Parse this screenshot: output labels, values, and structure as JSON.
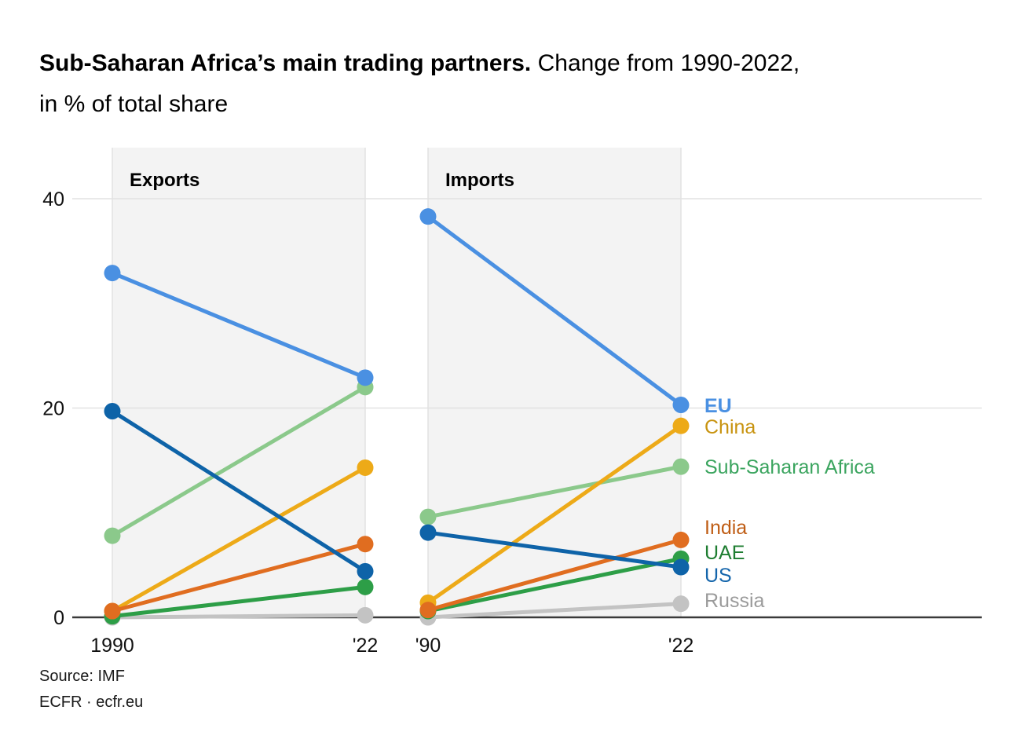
{
  "title": {
    "bold": "Sub-Saharan Africa’s main trading partners.",
    "tail": " Change from 1990-2022,",
    "line2": "in % of total share"
  },
  "footer": {
    "source": "Source: IMF",
    "credit": "ECFR · ecfr.eu"
  },
  "chart_data": {
    "type": "line",
    "subtype": "slope-chart",
    "title": "Sub-Saharan Africa’s main trading partners. Change from 1990-2022, in % of total share",
    "unit": "% of total share",
    "x": [
      "1990",
      "2022"
    ],
    "ylim": [
      0,
      45
    ],
    "yticks": [
      0,
      20,
      40
    ],
    "grid": true,
    "legend_position": "right",
    "panels": [
      {
        "title": "Exports",
        "x_tick_labels": [
          "1990",
          "'22"
        ],
        "series": [
          {
            "name": "EU",
            "values": [
              32.9,
              22.9
            ]
          },
          {
            "name": "China",
            "values": [
              0.6,
              14.3
            ]
          },
          {
            "name": "Sub-Saharan Africa",
            "values": [
              7.8,
              22.0
            ]
          },
          {
            "name": "India",
            "values": [
              0.6,
              7.0
            ]
          },
          {
            "name": "UAE",
            "values": [
              0.1,
              2.9
            ]
          },
          {
            "name": "US",
            "values": [
              19.7,
              4.4
            ]
          },
          {
            "name": "Russia",
            "values": [
              0.0,
              0.2
            ]
          }
        ]
      },
      {
        "title": "Imports",
        "x_tick_labels": [
          "'90",
          "'22"
        ],
        "series": [
          {
            "name": "EU",
            "values": [
              38.3,
              20.3
            ]
          },
          {
            "name": "China",
            "values": [
              1.4,
              18.3
            ]
          },
          {
            "name": "Sub-Saharan Africa",
            "values": [
              9.6,
              14.4
            ]
          },
          {
            "name": "India",
            "values": [
              0.7,
              7.4
            ]
          },
          {
            "name": "UAE",
            "values": [
              0.6,
              5.6
            ]
          },
          {
            "name": "US",
            "values": [
              8.1,
              4.8
            ]
          },
          {
            "name": "Russia",
            "values": [
              0.0,
              1.3
            ]
          }
        ]
      }
    ],
    "series_styles": {
      "EU": {
        "color": "#4a90e2",
        "label_color": "#4a90e2",
        "bold_label": true
      },
      "China": {
        "color": "#edaa18",
        "label_color": "#c8930f"
      },
      "Sub-Saharan Africa": {
        "color": "#8bc98b",
        "label_color": "#3aa45e"
      },
      "India": {
        "color": "#e06d20",
        "label_color": "#bf5d15"
      },
      "UAE": {
        "color": "#2d9e47",
        "label_color": "#1e7d31"
      },
      "US": {
        "color": "#0e63a8",
        "label_color": "#1465ab"
      },
      "Russia": {
        "color": "#c3c3c3",
        "label_color": "#9b9b9b"
      }
    },
    "legend": [
      "EU",
      "China",
      "Sub-Saharan Africa",
      "India",
      "UAE",
      "US",
      "Russia"
    ]
  }
}
